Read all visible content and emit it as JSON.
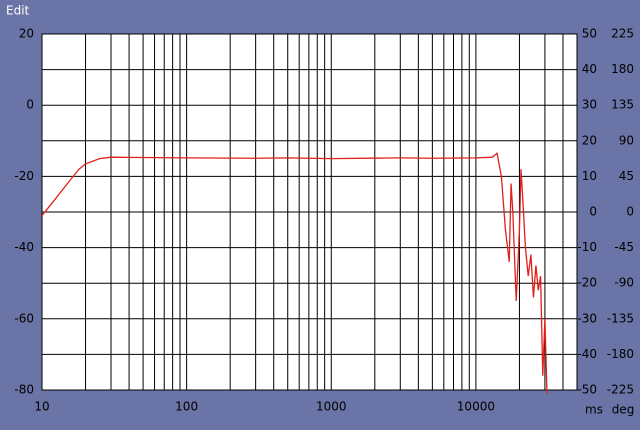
{
  "header": {
    "title": "Edit"
  },
  "chart_data": {
    "type": "line",
    "color": "#e0201b",
    "x": [
      10,
      12,
      15,
      18,
      20,
      25,
      30,
      50,
      100,
      300,
      500,
      1000,
      3000,
      5000,
      10000,
      13000,
      14000,
      15000,
      16000,
      17000,
      17500,
      18000,
      19000,
      20000,
      20500,
      21000,
      22000,
      23000,
      24000,
      25000,
      26000,
      27000,
      28000,
      29000,
      30000,
      31000
    ],
    "values": [
      -31,
      -27,
      -22,
      -18,
      -16.5,
      -15,
      -14.6,
      -14.7,
      -14.8,
      -14.9,
      -14.8,
      -15,
      -14.8,
      -14.9,
      -14.8,
      -14.6,
      -13.5,
      -20,
      -35,
      -44,
      -22,
      -30,
      -55,
      -35,
      -18,
      -25,
      -40,
      -48,
      -42,
      -54,
      -45,
      -52,
      -48,
      -76,
      -60,
      -81
    ],
    "xlim": [
      10,
      50000
    ],
    "xticks": [
      10,
      100,
      1000,
      10000
    ],
    "xminor_grid": [
      20,
      30,
      40,
      50,
      60,
      70,
      80,
      90,
      200,
      300,
      400,
      500,
      600,
      700,
      800,
      900,
      2000,
      3000,
      4000,
      5000,
      6000,
      7000,
      8000,
      9000,
      20000,
      30000,
      40000
    ],
    "log_x": true,
    "ylim": [
      -80,
      20
    ],
    "yticks": [
      -80,
      -60,
      -40,
      -20,
      0,
      20
    ],
    "y2label": "ms",
    "y2lim": [
      -50,
      50
    ],
    "y2ticks": [
      -50,
      -40,
      -30,
      -20,
      -10,
      0,
      10,
      20,
      30,
      40,
      50
    ],
    "y3label": "deg",
    "y3lim": [
      -225,
      225
    ],
    "y3ticks": [
      -225,
      -180,
      -135,
      -90,
      -45,
      0,
      45,
      90,
      135,
      180,
      225
    ],
    "grid": true
  }
}
